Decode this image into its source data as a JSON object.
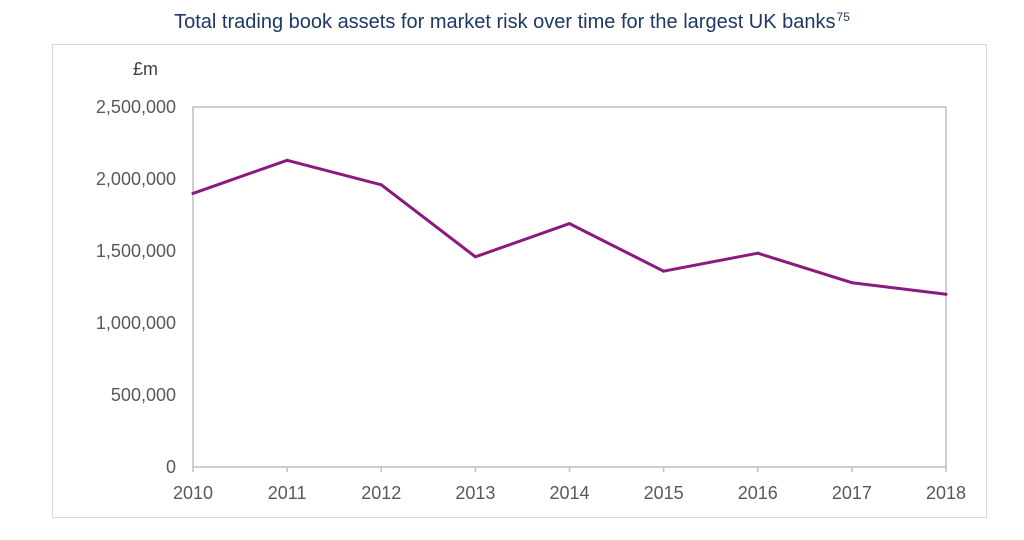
{
  "title": "Total trading book assets for market risk over time for the largest UK banks",
  "title_footnote": "75",
  "chart_data": {
    "type": "line",
    "title": "Total trading book assets for market risk over time for the largest UK banks",
    "ylabel": "£m",
    "xlabel": "",
    "categories": [
      "2010",
      "2011",
      "2012",
      "2013",
      "2014",
      "2015",
      "2016",
      "2017",
      "2018"
    ],
    "values": [
      1900000,
      2130000,
      1960000,
      1460000,
      1690000,
      1360000,
      1485000,
      1280000,
      1200000
    ],
    "ylim": [
      0,
      2500000
    ],
    "yticks": [
      "0",
      "500,000",
      "1,000,000",
      "1,500,000",
      "2,000,000",
      "2,500,000"
    ],
    "grid": false,
    "legend": "none",
    "line_color": "#8b1a7e",
    "axis_color": "#bfbfbf"
  }
}
